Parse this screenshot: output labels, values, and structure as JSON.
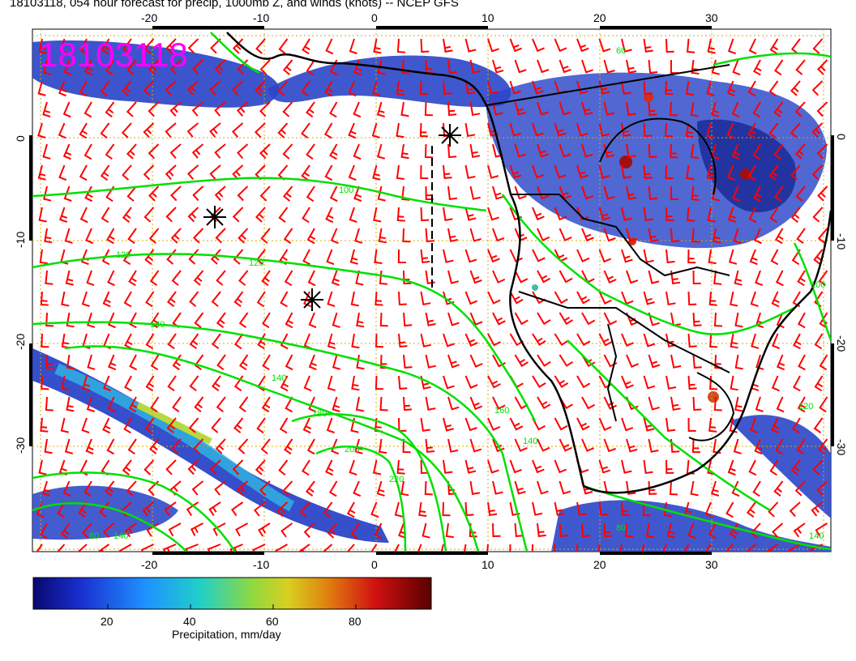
{
  "title": "18103118, 054 hour forecast for precip, 1000mb Z, and winds (knots) -- NCEP GFS",
  "stamp": "18103118",
  "map": {
    "lon_ticks": [
      "-20",
      "-10",
      "0",
      "10",
      "20",
      "30"
    ],
    "lat_ticks": [
      "0",
      "-10",
      "-20",
      "-30"
    ],
    "contour_labels": [
      "60",
      "100",
      "120",
      "120",
      "140",
      "140",
      "160",
      "180",
      "200",
      "220",
      "140",
      "80",
      "80",
      "100",
      "120",
      "140",
      "140"
    ],
    "colors": {
      "precip_low": "#1a2fa8",
      "precip_high": "#8b0000",
      "contour": "#00e000",
      "barb": "#ff0000",
      "coast": "#000000",
      "grid": "#d8a800"
    },
    "markers": [
      "asterisk",
      "asterisk",
      "asterisk"
    ]
  },
  "colorbar": {
    "label": "Precipitation, mm/day",
    "ticks": [
      "20",
      "40",
      "60",
      "80"
    ],
    "min": 0,
    "max": 100
  }
}
